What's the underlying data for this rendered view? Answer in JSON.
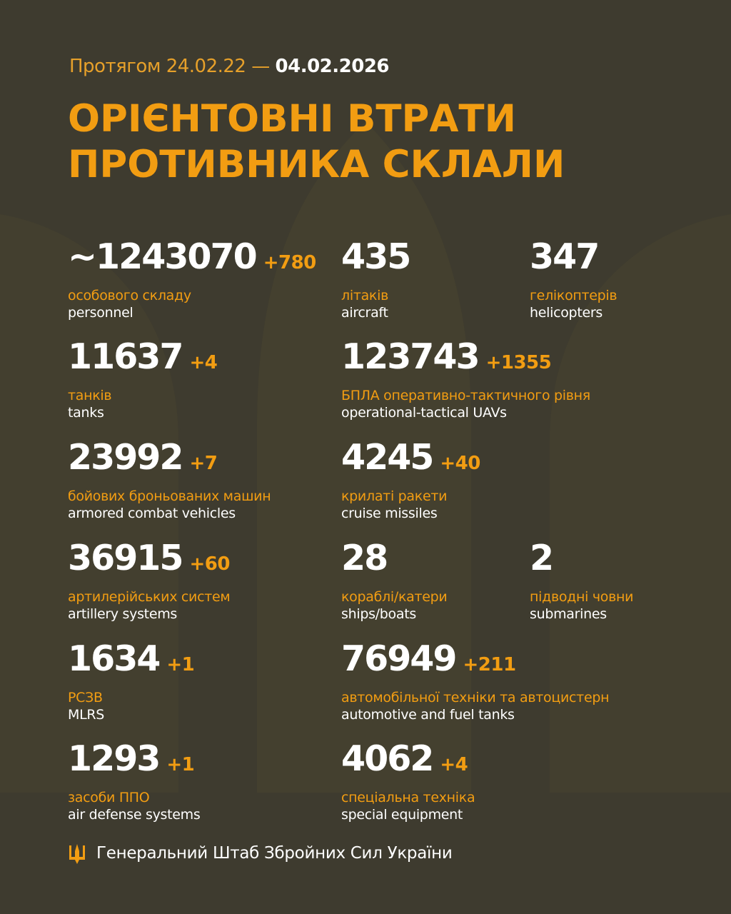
{
  "colors": {
    "background": "#3e3b2f",
    "accent": "#f29d12",
    "text": "#ffffff"
  },
  "header": {
    "period_prefix": "Протягом 24.02.22 —",
    "date": "04.02.2026",
    "title_line1": "ОРІЄНТОВНІ ВТРАТИ",
    "title_line2": "ПРОТИВНИКА СКЛАЛИ"
  },
  "items": [
    {
      "value": "~1243070",
      "delta": "+780",
      "ua": "особового складу",
      "en": "personnel"
    },
    {
      "value": "435",
      "delta": "",
      "ua": "літаків",
      "en": "aircraft"
    },
    {
      "value": "347",
      "delta": "",
      "ua": "гелікоптерів",
      "en": "helicopters"
    },
    {
      "value": "11637",
      "delta": "+4",
      "ua": "танків",
      "en": "tanks"
    },
    {
      "value": "123743",
      "delta": "+1355",
      "ua": "БПЛА оперативно-тактичного рівня",
      "en": "operational-tactical UAVs"
    },
    {
      "value": "23992",
      "delta": "+7",
      "ua": "бойових броньованих машин",
      "en": "armored combat vehicles"
    },
    {
      "value": "4245",
      "delta": "+40",
      "ua": "крилаті ракети",
      "en": "cruise missiles"
    },
    {
      "value": "36915",
      "delta": "+60",
      "ua": "артилерійських систем",
      "en": "artillery systems"
    },
    {
      "value": "28",
      "delta": "",
      "ua": "кораблі/катери",
      "en": "ships/boats"
    },
    {
      "value": "2",
      "delta": "",
      "ua": "підводні човни",
      "en": "submarines"
    },
    {
      "value": "1634",
      "delta": "+1",
      "ua": "РСЗВ",
      "en": "MLRS"
    },
    {
      "value": "76949",
      "delta": "+211",
      "ua": "автомобільної техніки та автоцистерн",
      "en": "automotive and fuel tanks"
    },
    {
      "value": "1293",
      "delta": "+1",
      "ua": "засоби ППО",
      "en": "air defense systems"
    },
    {
      "value": "4062",
      "delta": "+4",
      "ua": "спеціальна техніка",
      "en": "special equipment"
    }
  ],
  "footer": {
    "icon": "trident-icon",
    "text": "Генеральний Штаб Збройних Сил України"
  }
}
